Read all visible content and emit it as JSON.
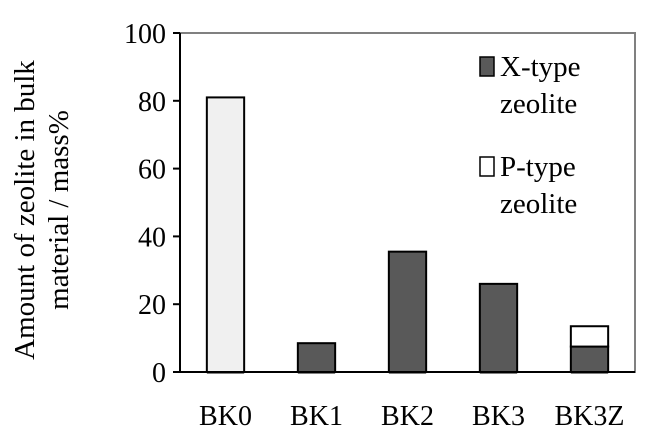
{
  "chart_data": {
    "type": "bar",
    "stacked": true,
    "categories": [
      "BK0",
      "BK1",
      "BK2",
      "BK3",
      "BK3Z"
    ],
    "series": [
      {
        "name": "X-type zeolite",
        "values": [
          0,
          8.5,
          35.5,
          26,
          7.5
        ],
        "color": "#595959"
      },
      {
        "name": "P-type zeolite",
        "values": [
          81,
          0,
          0,
          0,
          6
        ],
        "color": "#ffffff"
      }
    ],
    "bk0_fill": "#f0f0f0",
    "xlabel": "",
    "ylabel_lines": [
      "Amount of zeolite in bulk",
      "material / mass%"
    ],
    "ylim": [
      0,
      100
    ],
    "yticks": [
      "0",
      "20",
      "40",
      "60",
      "80",
      "100"
    ],
    "grid": false,
    "legend_position": "top-right",
    "legend": {
      "x_lines": [
        "X-type",
        "zeolite"
      ],
      "p_lines": [
        "P-type",
        "zeolite"
      ]
    }
  }
}
